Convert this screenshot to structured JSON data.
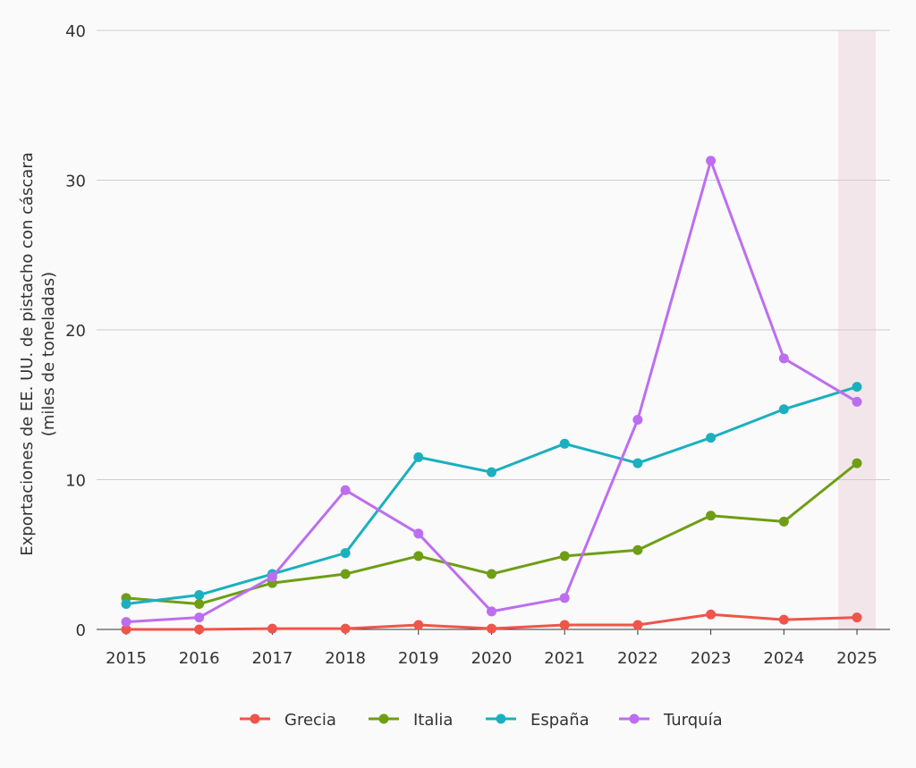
{
  "chart_data": {
    "type": "line",
    "title": "",
    "xlabel": "",
    "ylabel_line1": "Exportaciones de EE. UU. de pistacho con cáscara",
    "ylabel_line2": "(miles de toneladas)",
    "x": [
      "2015",
      "2016",
      "2017",
      "2018",
      "2019",
      "2020",
      "2021",
      "2022",
      "2023",
      "2024",
      "2025"
    ],
    "yticks": [
      0,
      10,
      20,
      30,
      40
    ],
    "ylim": [
      0,
      40
    ],
    "grid": true,
    "legend_position": "bottom",
    "highlight_category": "2025",
    "highlight_color": "#f3e6ea",
    "series": [
      {
        "name": "Grecia",
        "color": "#f0554a",
        "values": [
          0.0,
          0.0,
          0.05,
          0.05,
          0.3,
          0.05,
          0.3,
          0.3,
          1.0,
          0.65,
          0.8
        ]
      },
      {
        "name": "Italia",
        "color": "#6f9e14",
        "values": [
          2.1,
          1.7,
          3.1,
          3.7,
          4.9,
          3.7,
          4.9,
          5.3,
          7.6,
          7.2,
          11.1
        ]
      },
      {
        "name": "España",
        "color": "#1ab0bf",
        "values": [
          1.7,
          2.3,
          3.7,
          5.1,
          11.5,
          10.5,
          12.4,
          11.1,
          12.8,
          14.7,
          16.2
        ]
      },
      {
        "name": "Turquía",
        "color": "#bd6ef0",
        "values": [
          0.5,
          0.8,
          3.5,
          9.3,
          6.4,
          1.2,
          2.1,
          14.0,
          31.3,
          18.1,
          15.2
        ]
      }
    ]
  }
}
